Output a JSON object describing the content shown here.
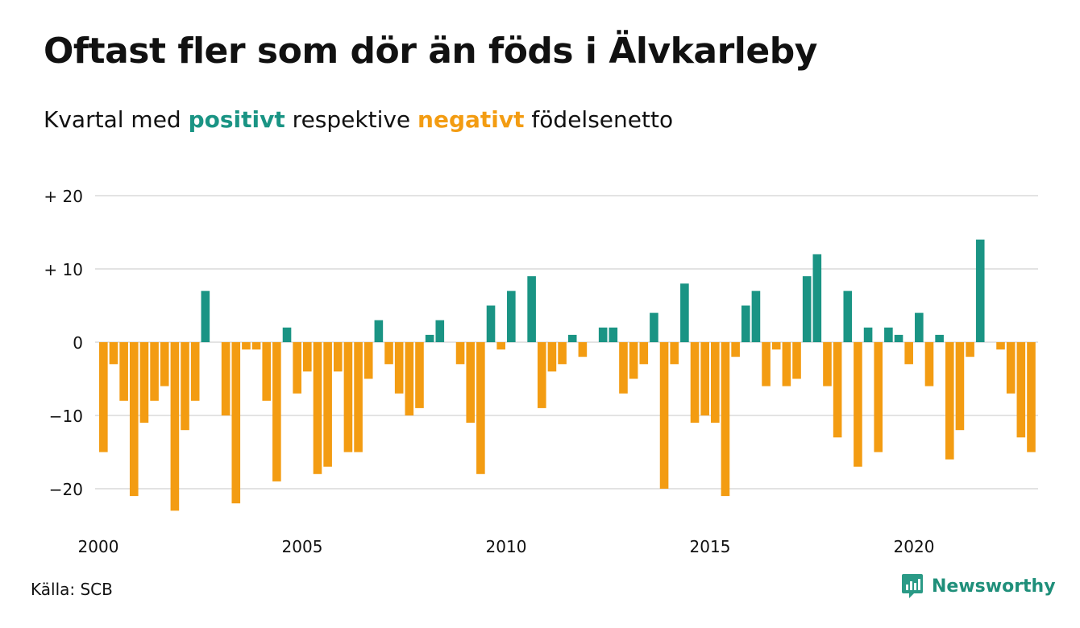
{
  "title": "Oftast fler som dör än föds i Älvkarleby",
  "subtitle": {
    "part1": "Kvartal med ",
    "positive_word": "positivt",
    "part2": " respektive ",
    "negative_word": "negativt",
    "part3": " födelsenetto"
  },
  "source": "Källa: SCB",
  "brand": {
    "name": "Newsworthy",
    "icon": "newsworthy-logo-icon"
  },
  "colors": {
    "positive": "#1a9484",
    "negative": "#f39c12",
    "grid": "#e3e3e3",
    "text": "#111111"
  },
  "chart_data": {
    "type": "bar",
    "title": "Oftast fler som dör än föds i Älvkarleby",
    "subtitle": "Kvartal med positivt respektive negativt födelsenetto",
    "xlabel": "",
    "ylabel": "",
    "ylim": [
      -25,
      22
    ],
    "grid": true,
    "x_ticks": [
      {
        "value": 2000,
        "label": "2000"
      },
      {
        "value": 2005,
        "label": "2005"
      },
      {
        "value": 2010,
        "label": "2010"
      },
      {
        "value": 2015,
        "label": "2015"
      },
      {
        "value": 2020,
        "label": "2020"
      }
    ],
    "y_ticks": [
      {
        "value": 20,
        "label": "+ 20"
      },
      {
        "value": 10,
        "label": "+ 10"
      },
      {
        "value": 0,
        "label": "0"
      },
      {
        "value": -10,
        "label": "−10"
      },
      {
        "value": -20,
        "label": "−20"
      }
    ],
    "start": "2000-Q1",
    "values": [
      -15,
      -3,
      -8,
      -21,
      -11,
      -8,
      -6,
      -23,
      -12,
      -8,
      7,
      0,
      -10,
      -22,
      -1,
      -1,
      -8,
      -19,
      2,
      -7,
      -4,
      -18,
      -17,
      -4,
      -15,
      -15,
      -5,
      3,
      -3,
      -7,
      -10,
      -9,
      1,
      3,
      0,
      -3,
      -11,
      -18,
      5,
      -1,
      7,
      0,
      9,
      -9,
      -4,
      -3,
      1,
      -2,
      0,
      2,
      2,
      -7,
      -5,
      -3,
      4,
      -20,
      -3,
      8,
      -11,
      -10,
      -11,
      -21,
      -2,
      5,
      7,
      -6,
      -1,
      -6,
      -5,
      9,
      12,
      -6,
      -13,
      7,
      -17,
      2,
      -15,
      2,
      1,
      -3,
      4,
      -6,
      1,
      -16,
      -12,
      -2,
      14,
      0,
      -1,
      -7,
      -13,
      -15
    ]
  }
}
